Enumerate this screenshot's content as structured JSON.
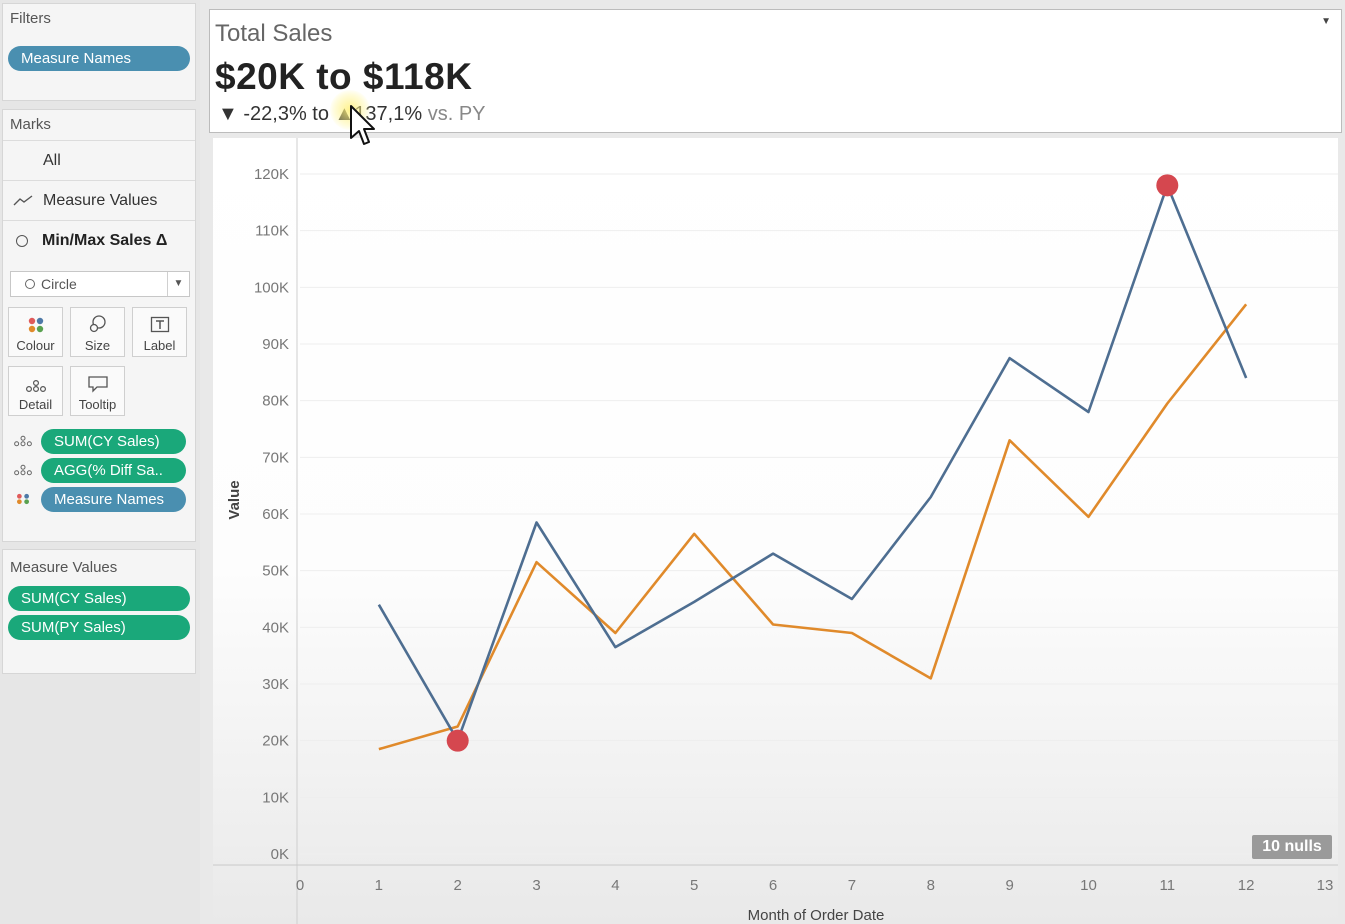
{
  "filters": {
    "title": "Filters",
    "pills": [
      "Measure Names"
    ]
  },
  "marks": {
    "title": "Marks",
    "rows": [
      "All",
      "Measure Values",
      "Min/Max Sales Δ"
    ],
    "mark_type": "Circle",
    "buttons": [
      "Colour",
      "Size",
      "Label",
      "Detail",
      "Tooltip"
    ],
    "shelf": [
      "SUM(CY Sales)",
      "AGG(% Diff Sa..",
      "Measure Names"
    ]
  },
  "measure_values": {
    "title": "Measure Values",
    "pills": [
      "SUM(CY Sales)",
      "SUM(PY Sales)"
    ]
  },
  "header": {
    "label": "Total Sales",
    "range": "$20K to $118K",
    "delta_down": "▼ -22,3% to ",
    "delta_up": "▲137,1%",
    "delta_vs": " vs. PY"
  },
  "nulls_badge": "10 nulls",
  "colors": {
    "cy": "#4e6e91",
    "py": "#e08a2b",
    "marker": "#d5474f",
    "pill_green": "#1aa87a",
    "pill_blue": "#4a8fb0"
  },
  "chart_data": {
    "type": "line",
    "xlabel": "Month of Order Date",
    "ylabel": "Value",
    "xlim": [
      0,
      13
    ],
    "ylim": [
      0,
      120000
    ],
    "x_ticks": [
      "0",
      "1",
      "2",
      "3",
      "4",
      "5",
      "6",
      "7",
      "8",
      "9",
      "10",
      "11",
      "12",
      "13"
    ],
    "y_ticks": [
      "0K",
      "10K",
      "20K",
      "30K",
      "40K",
      "50K",
      "60K",
      "70K",
      "80K",
      "90K",
      "100K",
      "110K",
      "120K"
    ],
    "x": [
      1,
      2,
      3,
      4,
      5,
      6,
      7,
      8,
      9,
      10,
      11,
      12
    ],
    "series": [
      {
        "name": "SUM(CY Sales)",
        "values": [
          44000,
          20000,
          58500,
          36500,
          44500,
          53000,
          45000,
          63000,
          87500,
          78000,
          118000,
          84000
        ]
      },
      {
        "name": "SUM(PY Sales)",
        "values": [
          18500,
          22500,
          51500,
          39000,
          56500,
          40500,
          39000,
          31000,
          73000,
          59500,
          79500,
          97000
        ]
      }
    ],
    "markers": [
      {
        "x": 2,
        "y": 20000,
        "label": "Min"
      },
      {
        "x": 11,
        "y": 118000,
        "label": "Max"
      }
    ]
  }
}
